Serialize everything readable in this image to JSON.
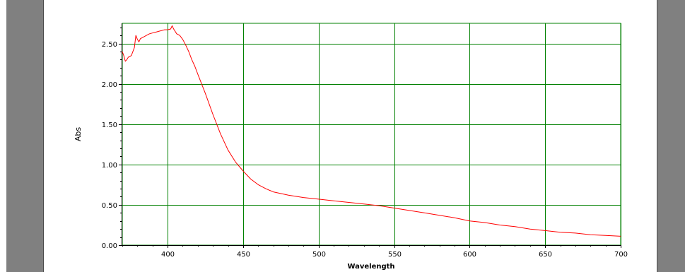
{
  "chart_data": {
    "type": "line",
    "xlabel": "Wavelength",
    "ylabel": "Abs",
    "xlim": [
      370,
      700
    ],
    "ylim": [
      0,
      2.75
    ],
    "x_ticks": [
      400,
      450,
      500,
      550,
      600,
      650,
      700
    ],
    "x_tick_labels": [
      "400",
      "450",
      "500",
      "550",
      "600",
      "650",
      "700"
    ],
    "y_ticks": [
      0,
      0.5,
      1.0,
      1.5,
      2.0,
      2.5
    ],
    "y_tick_labels": [
      "0.00",
      "0.50",
      "1.00",
      "1.50",
      "2.00",
      "2.50"
    ],
    "grid": true,
    "colors": {
      "line": "#ff0000",
      "grid": "#008000",
      "side_panel": "#808080"
    },
    "series": [
      {
        "x": [
          370,
          371,
          372,
          373,
          374,
          376,
          378,
          379,
          380,
          381,
          382,
          384,
          386,
          388,
          390,
          392,
          394,
          396,
          398,
          400,
          402,
          403,
          404,
          405,
          406,
          408,
          410,
          412,
          414,
          416,
          418,
          420,
          425,
          430,
          435,
          440,
          445,
          450,
          455,
          460,
          465,
          470,
          480,
          490,
          500,
          510,
          520,
          530,
          540,
          550,
          560,
          570,
          580,
          590,
          600,
          610,
          620,
          630,
          640,
          650,
          660,
          670,
          680,
          690,
          700
        ],
        "y": [
          2.4,
          2.35,
          2.28,
          2.3,
          2.33,
          2.35,
          2.45,
          2.6,
          2.55,
          2.52,
          2.56,
          2.58,
          2.6,
          2.62,
          2.63,
          2.64,
          2.65,
          2.66,
          2.67,
          2.67,
          2.68,
          2.72,
          2.68,
          2.65,
          2.62,
          2.6,
          2.55,
          2.48,
          2.4,
          2.3,
          2.22,
          2.12,
          1.88,
          1.62,
          1.38,
          1.18,
          1.03,
          0.92,
          0.82,
          0.75,
          0.7,
          0.66,
          0.62,
          0.59,
          0.57,
          0.55,
          0.53,
          0.51,
          0.49,
          0.46,
          0.43,
          0.4,
          0.37,
          0.34,
          0.3,
          0.28,
          0.25,
          0.23,
          0.2,
          0.18,
          0.16,
          0.15,
          0.13,
          0.12,
          0.11
        ]
      }
    ]
  }
}
